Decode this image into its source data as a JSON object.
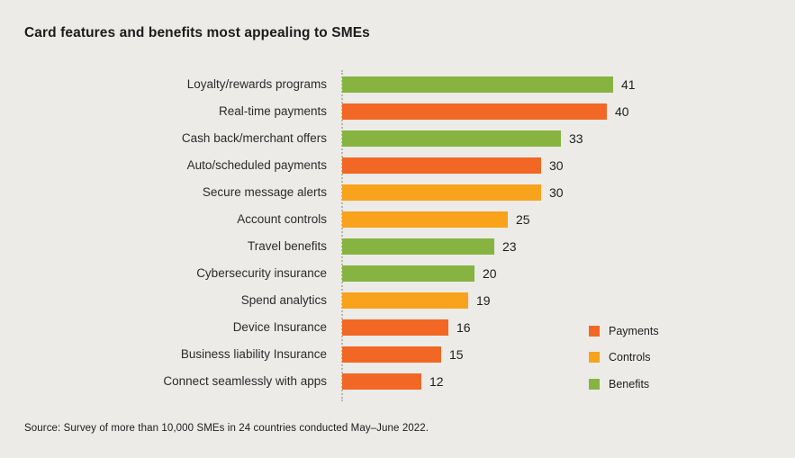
{
  "title": "Card features and benefits most appealing to SMEs",
  "source_note": "Source: Survey of more than 10,000 SMEs in 24 countries conducted May–June 2022.",
  "colors": {
    "payments": "#F26724",
    "controls": "#F9A21B",
    "benefits": "#87B440",
    "background": "#ECEBE8",
    "axis_dots": "#B9B7B2",
    "text": "#1E1E1E"
  },
  "legend": {
    "position": "bottom-right",
    "items": [
      {
        "label": "Payments",
        "key": "payments"
      },
      {
        "label": "Controls",
        "key": "controls"
      },
      {
        "label": "Benefits",
        "key": "benefits"
      }
    ]
  },
  "chart_data": {
    "type": "bar",
    "orientation": "horizontal",
    "title": "Card features and benefits most appealing to SMEs",
    "xlabel": "",
    "ylabel": "",
    "xlim": [
      0,
      45
    ],
    "grid": false,
    "axes_ticks_visible": false,
    "value_labels": "end-of-bar",
    "categories": [
      "Loyalty/rewards programs",
      "Real-time payments",
      "Cash back/merchant offers",
      "Auto/scheduled payments",
      "Secure message alerts",
      "Account controls",
      "Travel benefits",
      "Cybersecurity insurance",
      "Spend analytics",
      "Device Insurance",
      "Business liability Insurance",
      "Connect seamlessly with apps"
    ],
    "values": [
      41,
      40,
      33,
      30,
      30,
      25,
      23,
      20,
      19,
      16,
      15,
      12
    ],
    "series_category": [
      "benefits",
      "payments",
      "benefits",
      "payments",
      "controls",
      "controls",
      "benefits",
      "benefits",
      "controls",
      "payments",
      "payments",
      "payments"
    ]
  }
}
